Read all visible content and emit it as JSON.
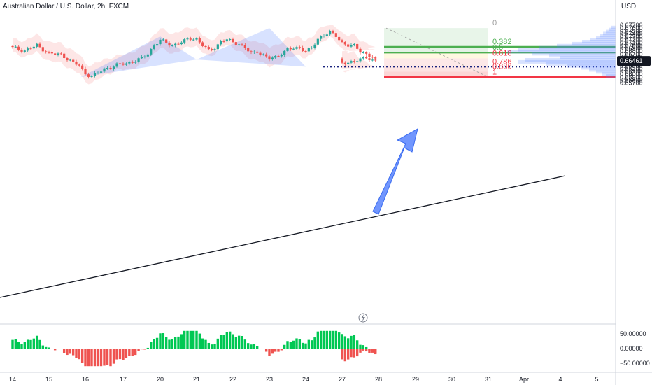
{
  "title": "Australian Dollar / U.S. Dollar, 2h, FXCM",
  "currency": "USD",
  "price_badge": "0.66461",
  "colors": {
    "bull": "#26a69a",
    "bear": "#ef5350",
    "pattern": "#4d7cfe",
    "fib_green": "#4caf50",
    "fib_red": "#f23645",
    "band": "#fbd1d1",
    "badge": "#131722"
  },
  "chart_data": [
    {
      "type": "candlestick",
      "title": "Australian Dollar / U.S. Dollar, 2h, FXCM",
      "ylabel": "USD",
      "ylim": [
        0.6565,
        0.6782
      ],
      "y_ticks": [
        "0.67700",
        "0.67600",
        "0.67500",
        "0.67400",
        "0.67300",
        "0.67200",
        "0.67100",
        "0.67000",
        "0.66900",
        "0.66800",
        "0.66700",
        "0.66600",
        "0.66500",
        "0.66400",
        "0.66300",
        "0.66200",
        "0.66100",
        "0.66000",
        "0.65900",
        "0.65800",
        "0.65700"
      ],
      "x_ticks": [
        "14",
        "15",
        "16",
        "17",
        "20",
        "21",
        "22",
        "23",
        "24",
        "27",
        "28",
        "29",
        "30",
        "31",
        "Apr",
        "4",
        "5"
      ],
      "last_price": 0.66461,
      "fib_retracement": {
        "top": 0.676,
        "bottom": 0.659,
        "levels": [
          {
            "label": "0",
            "value": 0.676
          },
          {
            "label": "0.382",
            "value": 0.6695
          },
          {
            "label": "0.5",
            "value": 0.6675
          },
          {
            "label": "0.618",
            "value": 0.6655
          },
          {
            "label": "0.786",
            "value": 0.6626
          },
          {
            "label": "0.886",
            "value": 0.6609
          },
          {
            "label": "1",
            "value": 0.659
          }
        ]
      },
      "harmonic_pattern": [
        {
          "x": "15",
          "price": 0.659
        },
        {
          "x": "20",
          "price": 0.6731
        },
        {
          "x": "21",
          "price": 0.6651
        },
        {
          "x": "23",
          "price": 0.676
        },
        {
          "x": "24",
          "price": 0.6626
        }
      ],
      "support_level": 0.6626,
      "legend": "none",
      "grid": false
    },
    {
      "type": "bar",
      "title": "",
      "y_ticks": [
        "50.00000",
        "0.00000",
        "−50.00000"
      ],
      "ylim": [
        -70,
        70
      ],
      "grid": false
    }
  ]
}
